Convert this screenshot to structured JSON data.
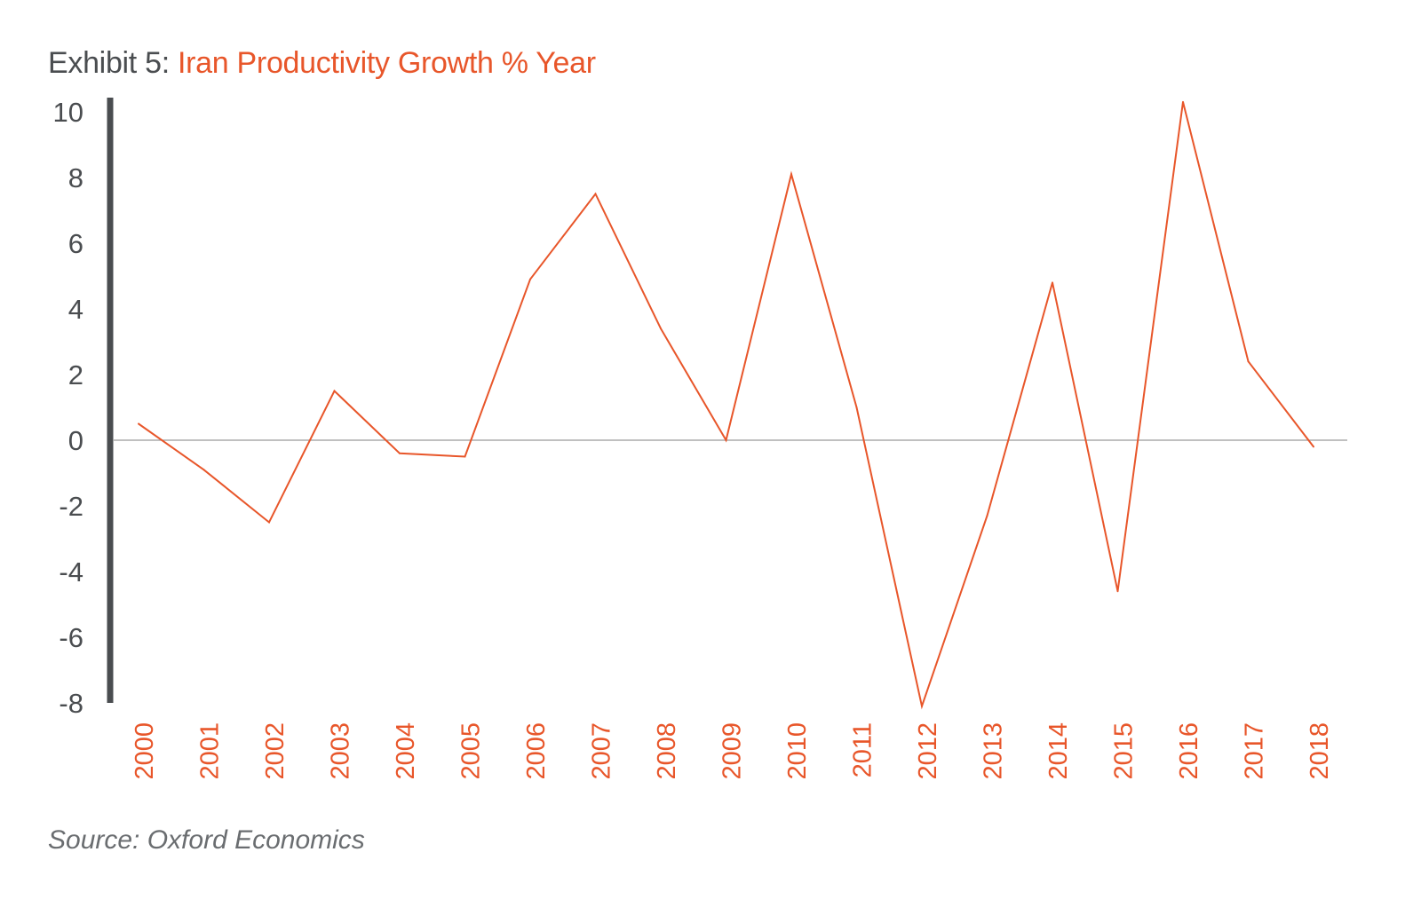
{
  "title": {
    "prefix": "Exhibit 5:",
    "main": "Iran Productivity Growth % Year"
  },
  "source": "Source: Oxford Economics",
  "colors": {
    "line": "#e8562a",
    "axis": "#4a4d50",
    "zero_line": "#9a9a9a",
    "x_labels": "#e8562a",
    "y_labels": "#4a4d50"
  },
  "chart_data": {
    "type": "line",
    "categories": [
      "2000",
      "2001",
      "2002",
      "2003",
      "2004",
      "2005",
      "2006",
      "2007",
      "2008",
      "2009",
      "2010",
      "2011",
      "2012",
      "2013",
      "2014",
      "2015",
      "2016",
      "2017",
      "2018"
    ],
    "series": [
      {
        "values": [
          0.5,
          -0.9,
          -2.5,
          1.5,
          -0.4,
          -0.5,
          4.9,
          7.5,
          3.4,
          0.0,
          8.1,
          1.0,
          -8.1,
          -2.3,
          4.8,
          -4.6,
          10.3,
          2.4,
          -0.2
        ]
      }
    ],
    "y_ticks": [
      10,
      8,
      6,
      4,
      2,
      0,
      -2,
      -4,
      -6,
      -8
    ],
    "ylim": [
      -8,
      10
    ],
    "xlabel": "",
    "ylabel": "",
    "grid": false,
    "legend": "none",
    "x_label_orientation": "vertical"
  }
}
